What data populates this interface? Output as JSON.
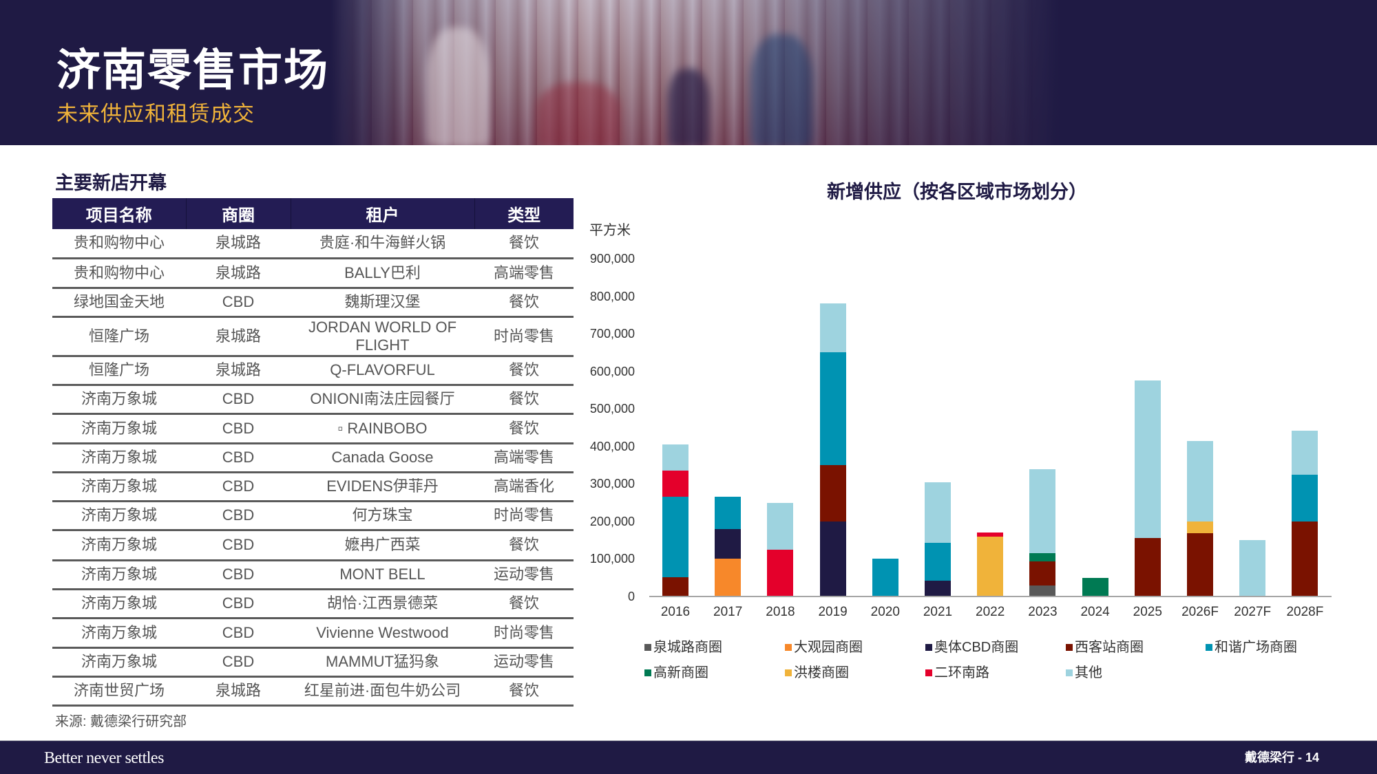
{
  "header": {
    "title": "济南零售市场",
    "subtitle": "未来供应和租赁成交"
  },
  "table_section": {
    "title": "主要新店开幕",
    "columns": [
      "项目名称",
      "商圈",
      "租户",
      "类型"
    ],
    "rows": [
      [
        "贵和购物中心",
        "泉城路",
        "贵庭·和牛海鲜火锅",
        "餐饮"
      ],
      [
        "贵和购物中心",
        "泉城路",
        "BALLY巴利",
        "高端零售"
      ],
      [
        "绿地国金天地",
        "CBD",
        "魏斯理汉堡",
        "餐饮"
      ],
      [
        "恒隆广场",
        "泉城路",
        "JORDAN WORLD OF FLIGHT",
        "时尚零售"
      ],
      [
        "恒隆广场",
        "泉城路",
        "Q-FLAVORFUL",
        "餐饮"
      ],
      [
        "济南万象城",
        "CBD",
        "ONIONI南法庄园餐厅",
        "餐饮"
      ],
      [
        "济南万象城",
        "CBD",
        "▫ RAINBOBO",
        "餐饮"
      ],
      [
        "济南万象城",
        "CBD",
        "Canada Goose",
        "高端零售"
      ],
      [
        "济南万象城",
        "CBD",
        "EVIDENS伊菲丹",
        "高端香化"
      ],
      [
        "济南万象城",
        "CBD",
        "何方珠宝",
        "时尚零售"
      ],
      [
        "济南万象城",
        "CBD",
        "嬷冉广西菜",
        "餐饮"
      ],
      [
        "济南万象城",
        "CBD",
        "MONT BELL",
        "运动零售"
      ],
      [
        "济南万象城",
        "CBD",
        "胡恰·江西景德菜",
        "餐饮"
      ],
      [
        "济南万象城",
        "CBD",
        "Vivienne Westwood",
        "时尚零售"
      ],
      [
        "济南万象城",
        "CBD",
        "MAMMUT猛犸象",
        "运动零售"
      ],
      [
        "济南世贸广场",
        "泉城路",
        "红星前进·面包牛奶公司",
        "餐饮"
      ]
    ],
    "source": "来源: 戴德梁行研究部"
  },
  "chart_data": {
    "type": "bar",
    "stacked": true,
    "title": "新增供应（按各区域市场划分）",
    "xlabel": "",
    "ylabel": "平方米",
    "ylim": [
      0,
      900000
    ],
    "yticks": [
      "0",
      "100,000",
      "200,000",
      "300,000",
      "400,000",
      "500,000",
      "600,000",
      "700,000",
      "800,000",
      "900,000"
    ],
    "grid": false,
    "legend_position": "bottom",
    "categories": [
      "2016",
      "2017",
      "2018",
      "2019",
      "2020",
      "2021",
      "2022",
      "2023",
      "2024",
      "2025",
      "2026F",
      "2027F",
      "2028F"
    ],
    "series": [
      {
        "name": "泉城路商圈",
        "color": "#595959",
        "values": [
          0,
          0,
          0,
          0,
          0,
          0,
          0,
          29000,
          0,
          0,
          0,
          0,
          0
        ]
      },
      {
        "name": "大观园商圈",
        "color": "#f7882a",
        "values": [
          0,
          100000,
          0,
          0,
          0,
          0,
          0,
          0,
          0,
          0,
          0,
          0,
          0
        ]
      },
      {
        "name": "奥体CBD商圈",
        "color": "#1f1a44",
        "values": [
          0,
          79000,
          0,
          200000,
          0,
          43000,
          0,
          0,
          0,
          0,
          0,
          0,
          0
        ]
      },
      {
        "name": "西客站商圈",
        "color": "#7a1200",
        "values": [
          51000,
          0,
          0,
          150000,
          0,
          0,
          0,
          65000,
          0,
          156000,
          169000,
          0,
          199000
        ]
      },
      {
        "name": "和谐广场商圈",
        "color": "#0093b2",
        "values": [
          214000,
          86000,
          0,
          301000,
          100000,
          100000,
          0,
          0,
          0,
          0,
          0,
          0,
          125000
        ]
      },
      {
        "name": "高新商圈",
        "color": "#007a53",
        "values": [
          0,
          0,
          0,
          0,
          0,
          0,
          0,
          22000,
          49000,
          0,
          0,
          0,
          0
        ]
      },
      {
        "name": "洪楼商圈",
        "color": "#f0b33a",
        "values": [
          0,
          0,
          0,
          0,
          0,
          0,
          160000,
          0,
          0,
          0,
          30000,
          0,
          0
        ]
      },
      {
        "name": "二环南路",
        "color": "#e4002b",
        "values": [
          70000,
          0,
          124000,
          0,
          0,
          0,
          11000,
          0,
          0,
          0,
          0,
          0,
          0
        ]
      },
      {
        "name": "其他",
        "color": "#9ed3df",
        "values": [
          70000,
          0,
          126000,
          130000,
          0,
          162000,
          0,
          224000,
          0,
          419000,
          215000,
          151000,
          117000
        ]
      }
    ]
  },
  "footer": {
    "tagline": "Better never settles",
    "page_label": "戴德梁行 - 14"
  }
}
